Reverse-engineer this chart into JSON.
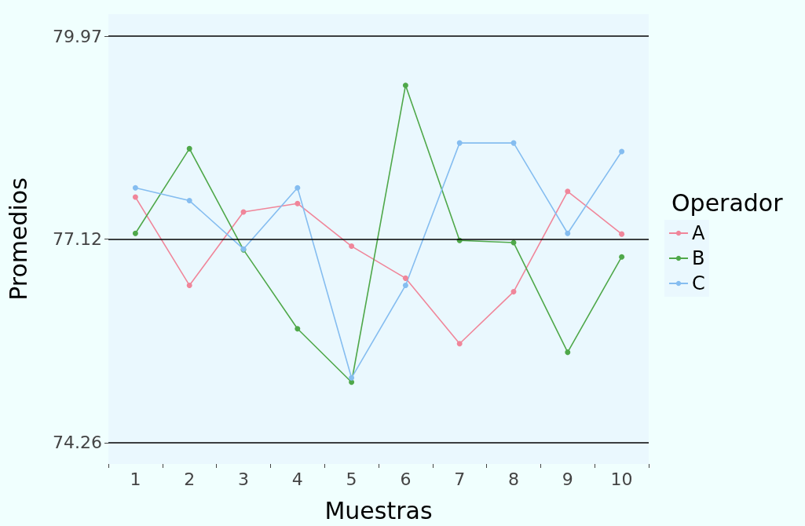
{
  "chart_data": {
    "type": "line",
    "xlabel": "Muestras",
    "ylabel": "Promedios",
    "legend_title": "Operador",
    "categories": [
      "1",
      "2",
      "3",
      "4",
      "5",
      "6",
      "7",
      "8",
      "9",
      "10"
    ],
    "series": [
      {
        "name": "A",
        "color": "#f0869a",
        "values": [
          77.71,
          76.47,
          77.5,
          77.62,
          77.02,
          76.57,
          75.65,
          76.38,
          77.79,
          77.19
        ]
      },
      {
        "name": "B",
        "color": "#4fa84a",
        "values": [
          77.2,
          78.39,
          76.97,
          75.86,
          75.11,
          79.28,
          77.1,
          77.07,
          75.53,
          76.87
        ]
      },
      {
        "name": "C",
        "color": "#85bdf0",
        "values": [
          77.84,
          77.66,
          76.98,
          77.84,
          75.17,
          76.47,
          78.47,
          78.47,
          77.2,
          78.35
        ]
      }
    ],
    "ylim": [
      73.96,
      80.28
    ],
    "yticks": [
      74.26,
      77.12,
      79.97
    ],
    "ref_lines": [
      {
        "axis": "y",
        "value": 79.97,
        "color": "#000000"
      },
      {
        "axis": "y",
        "value": 77.12,
        "color": "#000000"
      },
      {
        "axis": "y",
        "value": 74.26,
        "color": "#000000"
      }
    ],
    "marker": "circle",
    "line_style": "solid",
    "grid": false,
    "legend": "right"
  }
}
